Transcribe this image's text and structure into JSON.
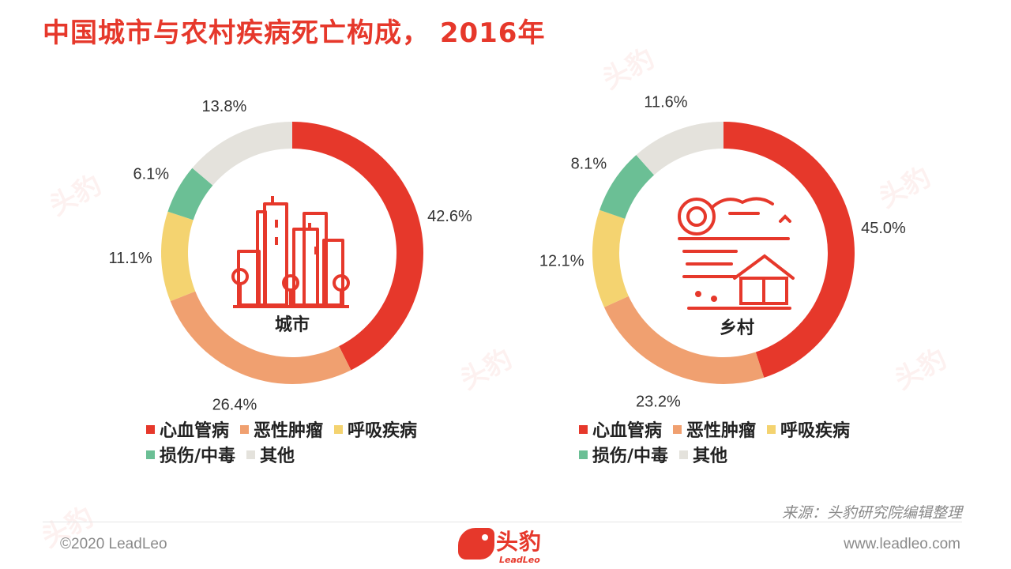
{
  "title": "中国城市与农村疾病死亡构成， 2016年",
  "colors": {
    "accent": "#e6382b",
    "cardio": "#e6382b",
    "tumor": "#f0a070",
    "respiratory": "#f4d370",
    "injury": "#6bbf95",
    "other": "#e4e2dc"
  },
  "chart_data": [
    {
      "type": "pie",
      "center_label": "城市",
      "icon": "city-buildings-icon",
      "categories": [
        "心血管病",
        "恶性肿瘤",
        "呼吸疾病",
        "损伤/中毒",
        "其他"
      ],
      "values": [
        42.6,
        26.4,
        11.1,
        6.1,
        13.8
      ],
      "labels": [
        "42.6%",
        "26.4%",
        "11.1%",
        "6.1%",
        "13.8%"
      ]
    },
    {
      "type": "pie",
      "center_label": "乡村",
      "icon": "countryside-house-icon",
      "categories": [
        "心血管病",
        "恶性肿瘤",
        "呼吸疾病",
        "损伤/中毒",
        "其他"
      ],
      "values": [
        45.0,
        23.2,
        12.1,
        8.1,
        11.6
      ],
      "labels": [
        "45.0%",
        "23.2%",
        "12.1%",
        "8.1%",
        "11.6%"
      ]
    }
  ],
  "legend": {
    "items": [
      "心血管病",
      "恶性肿瘤",
      "呼吸疾病",
      "损伤/中毒",
      "其他"
    ]
  },
  "source": "来源：头豹研究院编辑整理",
  "footer": {
    "copyright": "©2020 LeadLeo",
    "website": "www.leadleo.com",
    "logo_text": "头豹",
    "logo_sub": "LeadLeo"
  },
  "watermark": "头豹"
}
